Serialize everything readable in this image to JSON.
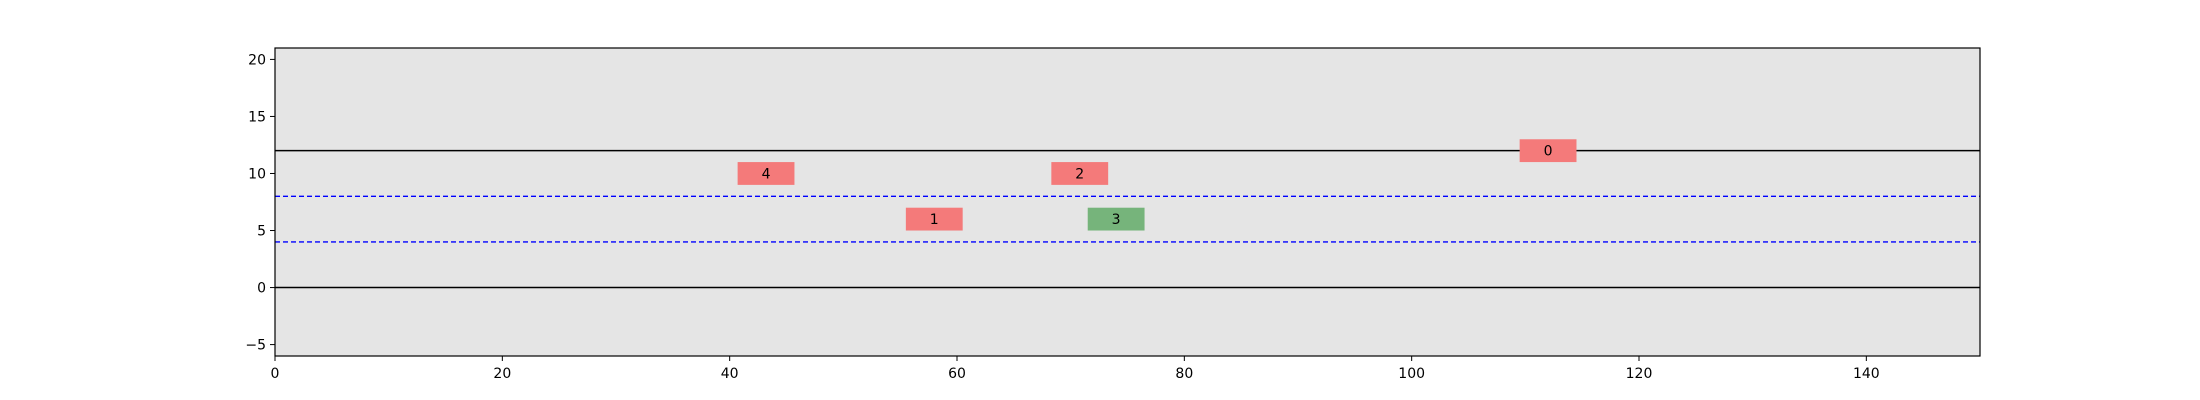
{
  "chart_data": {
    "type": "scatter",
    "title": "",
    "xlabel": "",
    "ylabel": "",
    "xlim": [
      0,
      150
    ],
    "ylim": [
      -6,
      21
    ],
    "x_ticks": [
      0,
      20,
      40,
      60,
      80,
      100,
      120,
      140
    ],
    "y_ticks": [
      -5,
      0,
      5,
      10,
      15,
      20
    ],
    "y_tick_labels": [
      "−5",
      "0",
      "5",
      "10",
      "15",
      "20"
    ],
    "background_color": "#e5e5e5",
    "grid": false,
    "road_edges": {
      "y": [
        0,
        12
      ],
      "color": "#000000",
      "style": "solid"
    },
    "lane_dividers": {
      "y": [
        4,
        8
      ],
      "color": "#0000ff",
      "style": "dashed"
    },
    "vehicle_size": {
      "length": 5,
      "width": 2
    },
    "vehicles": [
      {
        "id": "0",
        "x": 112,
        "y": 12,
        "color": "#f47a7a"
      },
      {
        "id": "1",
        "x": 58,
        "y": 6,
        "color": "#f47a7a"
      },
      {
        "id": "2",
        "x": 70.8,
        "y": 10,
        "color": "#f47a7a"
      },
      {
        "id": "3",
        "x": 74,
        "y": 6,
        "color": "#76b47b"
      },
      {
        "id": "4",
        "x": 43.2,
        "y": 10,
        "color": "#f47a7a"
      }
    ]
  }
}
